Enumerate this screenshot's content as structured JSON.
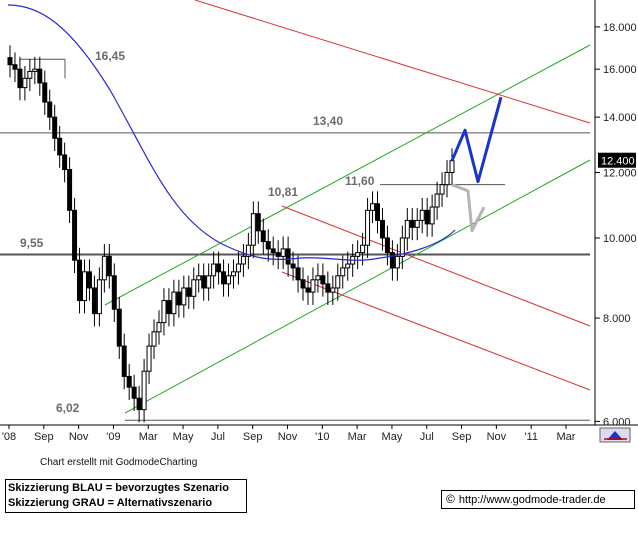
{
  "chart_data": {
    "type": "candlestick",
    "y_axis": {
      "ticks": [
        6.0,
        8.0,
        10.0,
        12.0,
        14.0,
        16.0,
        18.0
      ],
      "tick_labels": [
        "6.000",
        "8.000",
        "10.000",
        "12.000",
        "14.000",
        "16.000",
        "18.000"
      ],
      "ylim": [
        5.94,
        19.4
      ],
      "scale": "log",
      "position": "right"
    },
    "x_axis": {
      "tick_labels": [
        "'08",
        "Sep",
        "Nov",
        "'09",
        "Mar",
        "May",
        "Jul",
        "Sep",
        "Nov",
        "'10",
        "Mar",
        "May",
        "Jul",
        "Sep",
        "Nov",
        "'11",
        "Mar"
      ]
    },
    "last_price_label": "12.400",
    "last_price": 12.4,
    "annotations": [
      {
        "text": "16,45",
        "value": 16.45
      },
      {
        "text": "13,40",
        "value": 13.4
      },
      {
        "text": "10,81",
        "value": 10.81
      },
      {
        "text": "11,60",
        "value": 11.6
      },
      {
        "text": "9,55",
        "value": 9.55
      },
      {
        "text": "6,02",
        "value": 6.02
      }
    ],
    "horizontal_levels": [
      16.45,
      13.4,
      11.6,
      9.55,
      6.02
    ],
    "series": [
      {
        "name": "weekly candles (approx.)",
        "closes": [
          16.2,
          16.0,
          15.2,
          15.6,
          15.9,
          16.0,
          15.4,
          14.6,
          14.0,
          13.2,
          12.6,
          12.1,
          10.8,
          9.4,
          8.4,
          9.1,
          8.7,
          8.1,
          8.9,
          9.5,
          9.0,
          8.2,
          7.4,
          6.8,
          6.6,
          6.4,
          6.2,
          6.9,
          7.4,
          7.7,
          7.9,
          8.4,
          8.1,
          8.6,
          8.3,
          8.7,
          8.5,
          8.9,
          9.0,
          8.7,
          9.0,
          9.3,
          9.1,
          8.8,
          9.0,
          9.1,
          9.3,
          9.5,
          9.8,
          10.7,
          10.2,
          9.9,
          9.7,
          9.6,
          9.5,
          9.7,
          9.3,
          9.2,
          8.9,
          8.7,
          8.6,
          8.9,
          9.0,
          8.8,
          8.6,
          8.7,
          9.0,
          9.2,
          9.3,
          9.5,
          9.6,
          9.8,
          10.8,
          11.0,
          10.5,
          10.0,
          9.6,
          9.2,
          9.5,
          10.0,
          10.5,
          10.3,
          10.5,
          10.8,
          10.4,
          10.9,
          11.3,
          11.6,
          12.0,
          12.4
        ]
      }
    ],
    "moving_average": {
      "name": "",
      "color": "#2a2ad2"
    },
    "channels": [
      {
        "color": "#22aa22",
        "role": "green trend channel (upper/lower)"
      },
      {
        "color": "#dd3333",
        "role": "red down channel (upper/middle/lower)"
      }
    ],
    "scenarios": [
      {
        "color": "#1a33cc",
        "values": [
          12.4,
          13.5,
          11.7,
          14.8
        ]
      },
      {
        "color": "#b4b4b4",
        "values": [
          11.6,
          11.4,
          10.2,
          10.9
        ]
      }
    ]
  },
  "footer": {
    "credit": "Chart erstellt mit GodmodeCharting",
    "legend_blue": "Skizzierung BLAU = bevorzugtes Szenario",
    "legend_gray": "Skizzierung GRAU = Alternativszenario",
    "copyright_symbol": "©",
    "url": "http://www.godmode-trader.de"
  }
}
